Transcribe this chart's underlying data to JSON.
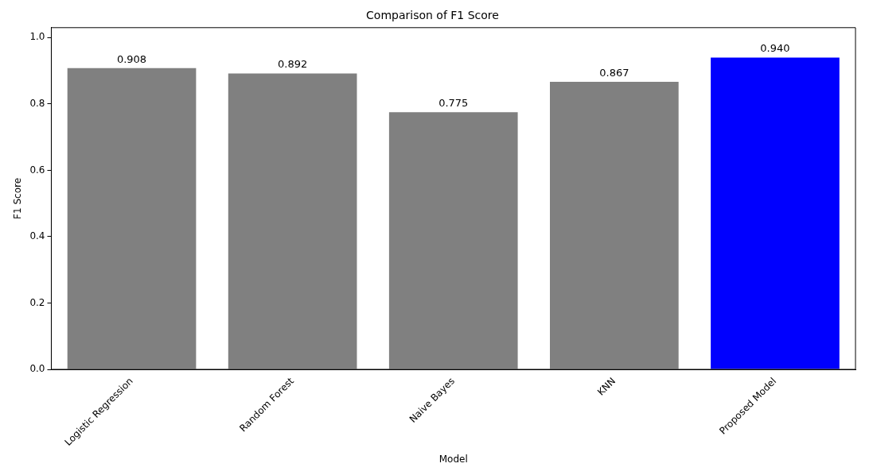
{
  "chart_data": {
    "type": "bar",
    "title": "Comparison of F1 Score",
    "xlabel": "Model",
    "ylabel": "F1 Score",
    "categories": [
      "Logistic Regression",
      "Random Forest",
      "Naive Bayes",
      "KNN",
      "Proposed Model"
    ],
    "values": [
      0.908,
      0.892,
      0.775,
      0.867,
      0.94
    ],
    "colors": [
      "#808080",
      "#808080",
      "#808080",
      "#808080",
      "#0000ff"
    ],
    "value_labels": [
      "0.908",
      "0.892",
      "0.775",
      "0.867",
      "0.940"
    ],
    "ylim": [
      0,
      1.03
    ],
    "yticks": [
      {
        "value": 0,
        "label": "0.0"
      },
      {
        "value": 0.2,
        "label": "0.2"
      },
      {
        "value": 0.4,
        "label": "0.4"
      },
      {
        "value": 0.6,
        "label": "0.6"
      },
      {
        "value": 0.8,
        "label": "0.8"
      },
      {
        "value": 1,
        "label": "1.0"
      }
    ],
    "grid": false,
    "legend": false
  }
}
